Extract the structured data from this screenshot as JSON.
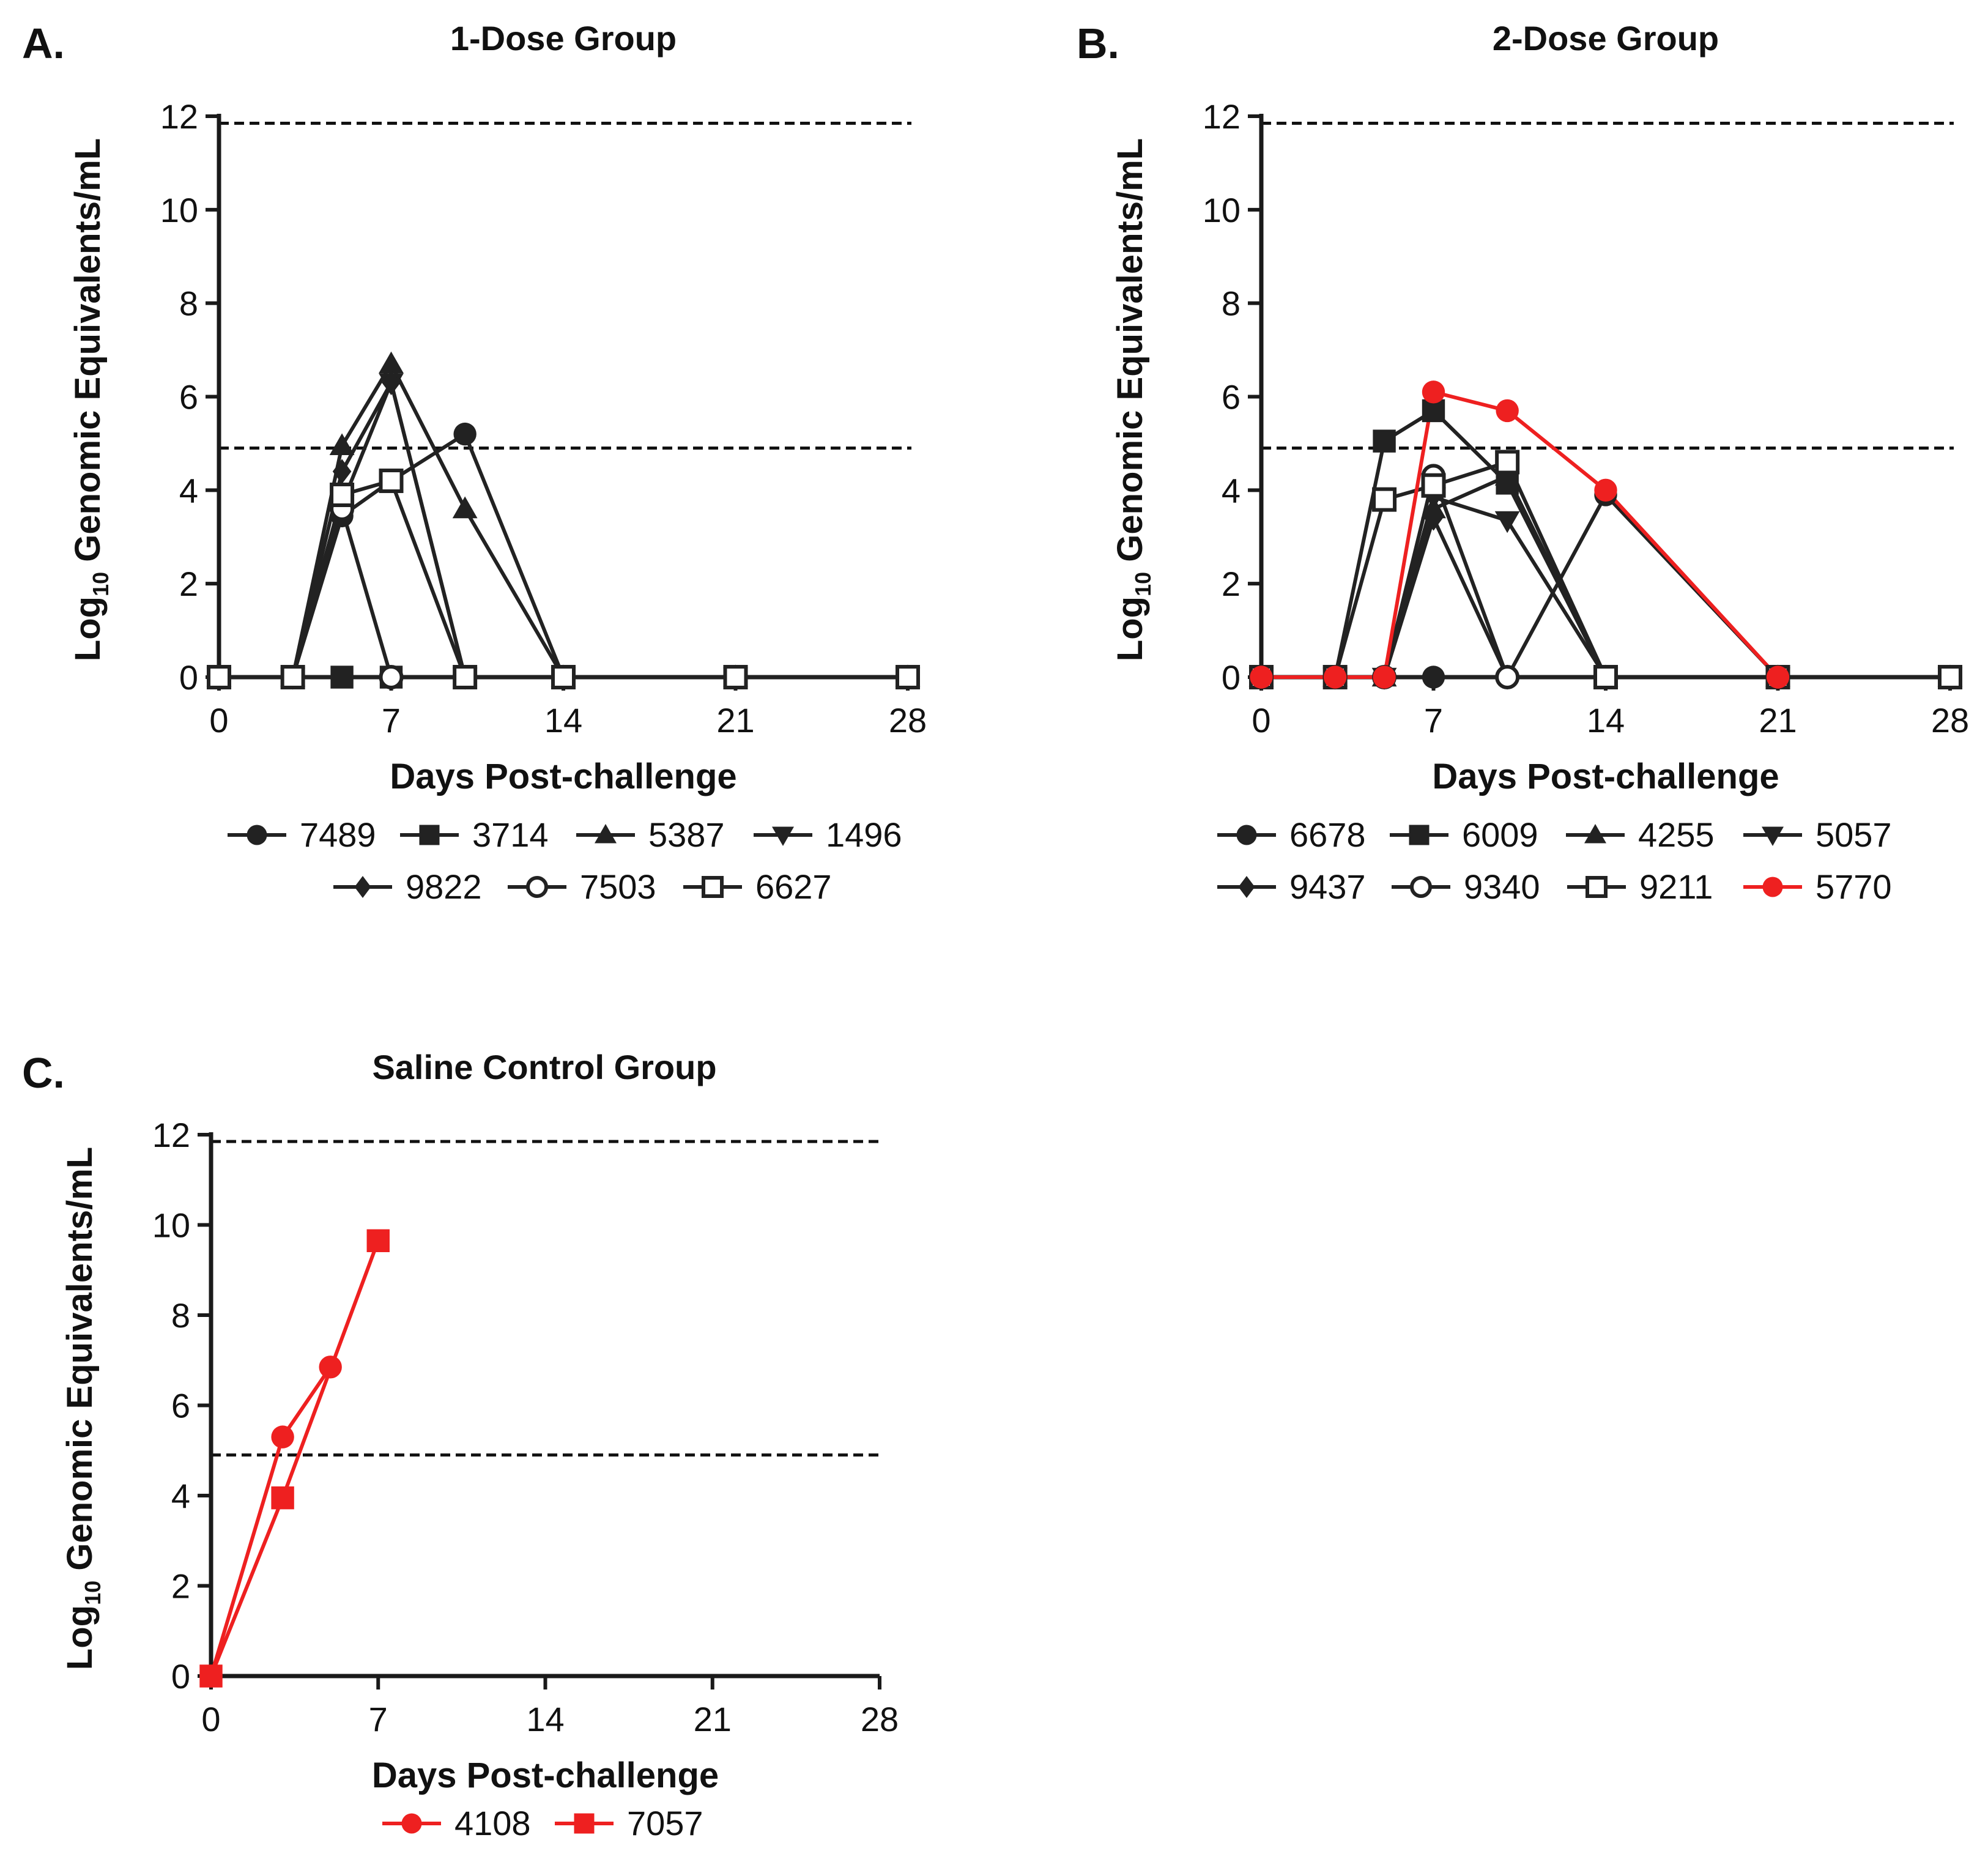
{
  "chart_data": [
    {
      "panel_label": "A.",
      "type": "line",
      "title": "1-Dose Group",
      "xlabel": "Days Post-challenge",
      "ylabel_main": "Log",
      "ylabel_sub": "10",
      "ylabel_rest": " Genomic Equivalents/mL",
      "xlim": [
        0,
        28
      ],
      "ylim": [
        0,
        12
      ],
      "xticks": [
        "0",
        "7",
        "14",
        "21",
        "28"
      ],
      "yticks": [
        "0",
        "2",
        "4",
        "6",
        "8",
        "10",
        "12"
      ],
      "reference_lines": [
        11.85,
        4.9
      ],
      "legend_rows": [
        [
          0,
          1,
          2,
          3
        ],
        [
          4,
          5,
          6
        ]
      ],
      "series": [
        {
          "name": "7489",
          "marker": "circle",
          "color": "#222222",
          "x": [
            0,
            3,
            5,
            7,
            10,
            14,
            21,
            28
          ],
          "y": [
            0,
            0,
            3.45,
            4.2,
            5.2,
            0,
            0,
            0
          ]
        },
        {
          "name": "3714",
          "marker": "square",
          "color": "#222222",
          "x": [
            0,
            3,
            5,
            7,
            10,
            14,
            21,
            28
          ],
          "y": [
            0,
            0,
            0,
            0,
            0,
            0,
            0,
            0
          ]
        },
        {
          "name": "5387",
          "marker": "triangle-up",
          "color": "#222222",
          "x": [
            0,
            3,
            5,
            7,
            10,
            14,
            21,
            28
          ],
          "y": [
            0,
            0,
            4.95,
            6.7,
            3.6,
            0,
            0,
            0
          ]
        },
        {
          "name": "1496",
          "marker": "triangle-down",
          "color": "#222222",
          "x": [
            0,
            3,
            5,
            7,
            10,
            14,
            21,
            28
          ],
          "y": [
            0,
            0,
            3.7,
            6.3,
            0,
            0,
            0,
            0
          ]
        },
        {
          "name": "9822",
          "marker": "diamond",
          "color": "#222222",
          "x": [
            0,
            3,
            5,
            7,
            10,
            14,
            21,
            28
          ],
          "y": [
            0,
            0,
            4.4,
            6.3,
            0,
            0,
            0,
            0
          ]
        },
        {
          "name": "7503",
          "marker": "circle-open",
          "color": "#222222",
          "x": [
            0,
            3,
            5,
            7,
            10,
            14,
            21,
            28
          ],
          "y": [
            0,
            0,
            3.6,
            0,
            0,
            0,
            0,
            0
          ]
        },
        {
          "name": "6627",
          "marker": "square-open",
          "color": "#222222",
          "x": [
            0,
            3,
            5,
            7,
            10,
            14,
            21,
            28
          ],
          "y": [
            0,
            0,
            3.9,
            4.2,
            0,
            0,
            0,
            0
          ]
        }
      ]
    },
    {
      "panel_label": "B.",
      "type": "line",
      "title": "2-Dose Group",
      "xlabel": "Days Post-challenge",
      "ylabel_main": "Log",
      "ylabel_sub": "10",
      "ylabel_rest": " Genomic Equivalents/mL",
      "xlim": [
        0,
        28
      ],
      "ylim": [
        0,
        12
      ],
      "xticks": [
        "0",
        "7",
        "14",
        "21",
        "28"
      ],
      "yticks": [
        "0",
        "2",
        "4",
        "6",
        "8",
        "10",
        "12"
      ],
      "reference_lines": [
        11.85,
        4.9
      ],
      "legend_rows": [
        [
          0,
          1,
          2,
          3
        ],
        [
          4,
          5,
          6,
          7
        ]
      ],
      "series": [
        {
          "name": "6678",
          "marker": "circle",
          "color": "#222222",
          "x": [
            0,
            3,
            5,
            7,
            10,
            14,
            21,
            28
          ],
          "y": [
            0,
            0,
            0,
            0,
            0,
            3.9,
            0,
            0
          ]
        },
        {
          "name": "6009",
          "marker": "square",
          "color": "#222222",
          "x": [
            0,
            3,
            5,
            7,
            10,
            14,
            21,
            28
          ],
          "y": [
            0,
            0,
            5.05,
            5.7,
            4.15,
            0,
            0,
            0
          ]
        },
        {
          "name": "4255",
          "marker": "triangle-up",
          "color": "#222222",
          "x": [
            0,
            3,
            5,
            7,
            10,
            14,
            21,
            28
          ],
          "y": [
            0,
            0,
            0,
            3.6,
            4.3,
            0,
            0,
            0
          ]
        },
        {
          "name": "5057",
          "marker": "triangle-down",
          "color": "#222222",
          "x": [
            0,
            3,
            5,
            7,
            10,
            14,
            21,
            28
          ],
          "y": [
            0,
            0,
            0,
            3.85,
            3.35,
            0,
            0,
            0
          ]
        },
        {
          "name": "9437",
          "marker": "diamond",
          "color": "#222222",
          "x": [
            0,
            3,
            5,
            7,
            10,
            14,
            21,
            28
          ],
          "y": [
            0,
            0,
            0,
            3.4,
            0,
            0,
            0,
            0
          ]
        },
        {
          "name": "9340",
          "marker": "circle-open",
          "color": "#222222",
          "x": [
            0,
            3,
            5,
            7,
            10,
            14,
            21,
            28
          ],
          "y": [
            0,
            0,
            0,
            4.3,
            0,
            0,
            0,
            0
          ]
        },
        {
          "name": "9211",
          "marker": "square-open",
          "color": "#222222",
          "x": [
            0,
            3,
            5,
            7,
            10,
            14,
            21,
            28
          ],
          "y": [
            0,
            0,
            3.8,
            4.1,
            4.6,
            0,
            0,
            0
          ]
        },
        {
          "name": "5770",
          "marker": "circle",
          "color": "#ee2020",
          "x": [
            0,
            3,
            5,
            7,
            10,
            14,
            21
          ],
          "y": [
            0,
            0,
            0,
            6.1,
            5.7,
            4.0,
            0
          ]
        }
      ]
    },
    {
      "panel_label": "C.",
      "type": "line",
      "title": "Saline Control Group",
      "xlabel": "Days Post-challenge",
      "ylabel_main": "Log",
      "ylabel_sub": "10",
      "ylabel_rest": " Genomic Equivalents/mL",
      "xlim": [
        0,
        28
      ],
      "ylim": [
        0,
        12
      ],
      "xticks": [
        "0",
        "7",
        "14",
        "21",
        "28"
      ],
      "yticks": [
        "0",
        "2",
        "4",
        "6",
        "8",
        "10",
        "12"
      ],
      "reference_lines": [
        11.85,
        4.9
      ],
      "legend_rows": [
        [
          0,
          1
        ]
      ],
      "series": [
        {
          "name": "4108",
          "marker": "circle",
          "color": "#ee2020",
          "x": [
            0,
            3,
            5
          ],
          "y": [
            0,
            5.3,
            6.85
          ]
        },
        {
          "name": "7057",
          "marker": "square",
          "color": "#ee2020",
          "x": [
            0,
            3,
            7
          ],
          "y": [
            0,
            3.95,
            9.65
          ]
        }
      ]
    }
  ]
}
